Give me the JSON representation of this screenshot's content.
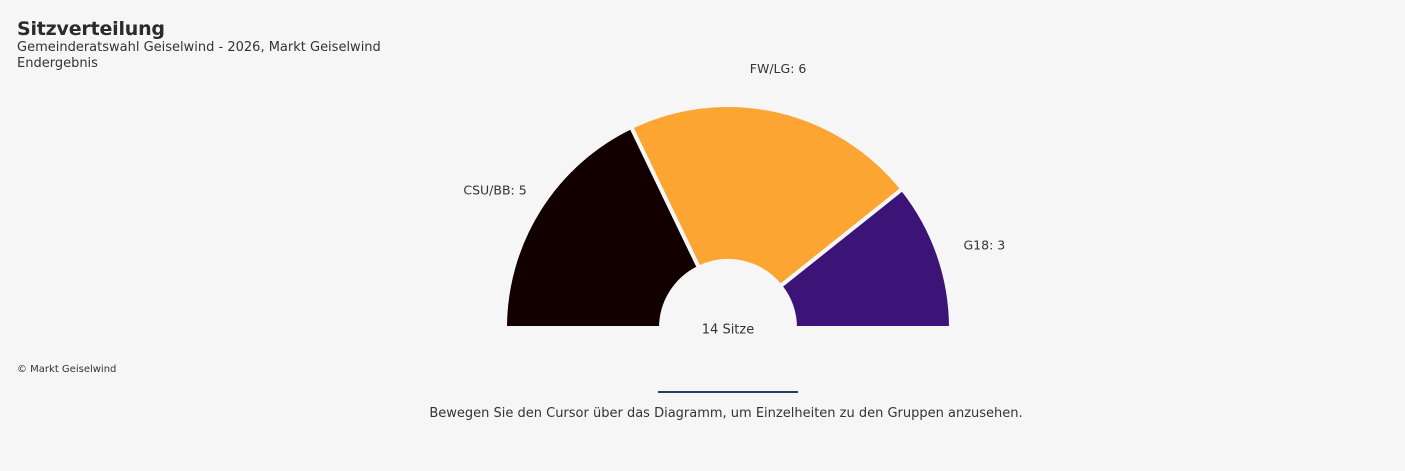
{
  "header": {
    "title": "Sitzverteilung",
    "subtitle": "Gemeinderatswahl Geiselwind - 2026, Markt Geiselwind",
    "status": "Endergebnis"
  },
  "footer": {
    "copyright": "© Markt Geiselwind",
    "hint": "Bewegen Sie den Cursor über das Diagramm, um Einzelheiten zu den Gruppen anzusehen."
  },
  "chart_data": {
    "type": "pie",
    "variant": "semi-donut",
    "center_label": "14 Sitze",
    "total": 14,
    "slices": [
      {
        "name": "CSU/BB",
        "value": 5,
        "label": "CSU/BB: 5",
        "color": "#120000"
      },
      {
        "name": "FW/LG",
        "value": 6,
        "label": "FW/LG: 6",
        "color": "#fca532"
      },
      {
        "name": "G18",
        "value": 3,
        "label": "G18: 3",
        "color": "#3c1478"
      }
    ]
  }
}
